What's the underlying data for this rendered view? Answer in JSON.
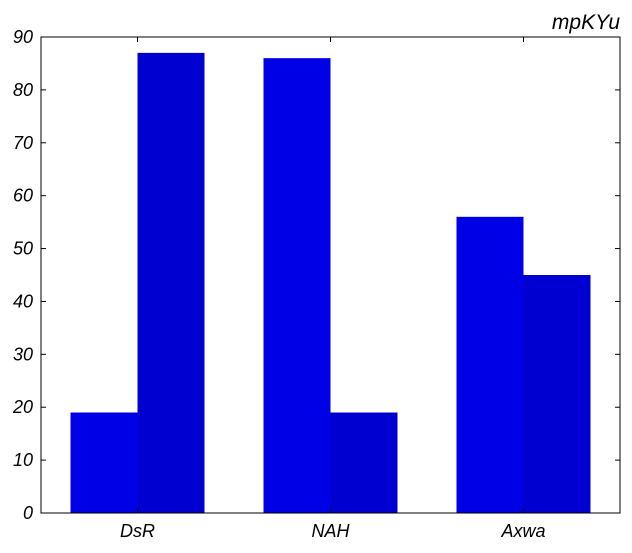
{
  "chart_data": {
    "type": "bar",
    "title": "mpKYu",
    "xlabel": "",
    "ylabel": "",
    "categories": [
      "DsR",
      "NAH",
      "Axwa"
    ],
    "series": [
      {
        "values": [
          19,
          86,
          56
        ]
      },
      {
        "values": [
          87,
          19,
          45
        ]
      }
    ],
    "ylim": [
      0,
      90
    ],
    "yticks": [
      "0",
      "10",
      "20",
      "30",
      "40",
      "50",
      "60",
      "70",
      "80",
      "90"
    ],
    "grid": false,
    "legend": "none",
    "colors": [
      "#0000e6",
      "#0000d0"
    ]
  }
}
